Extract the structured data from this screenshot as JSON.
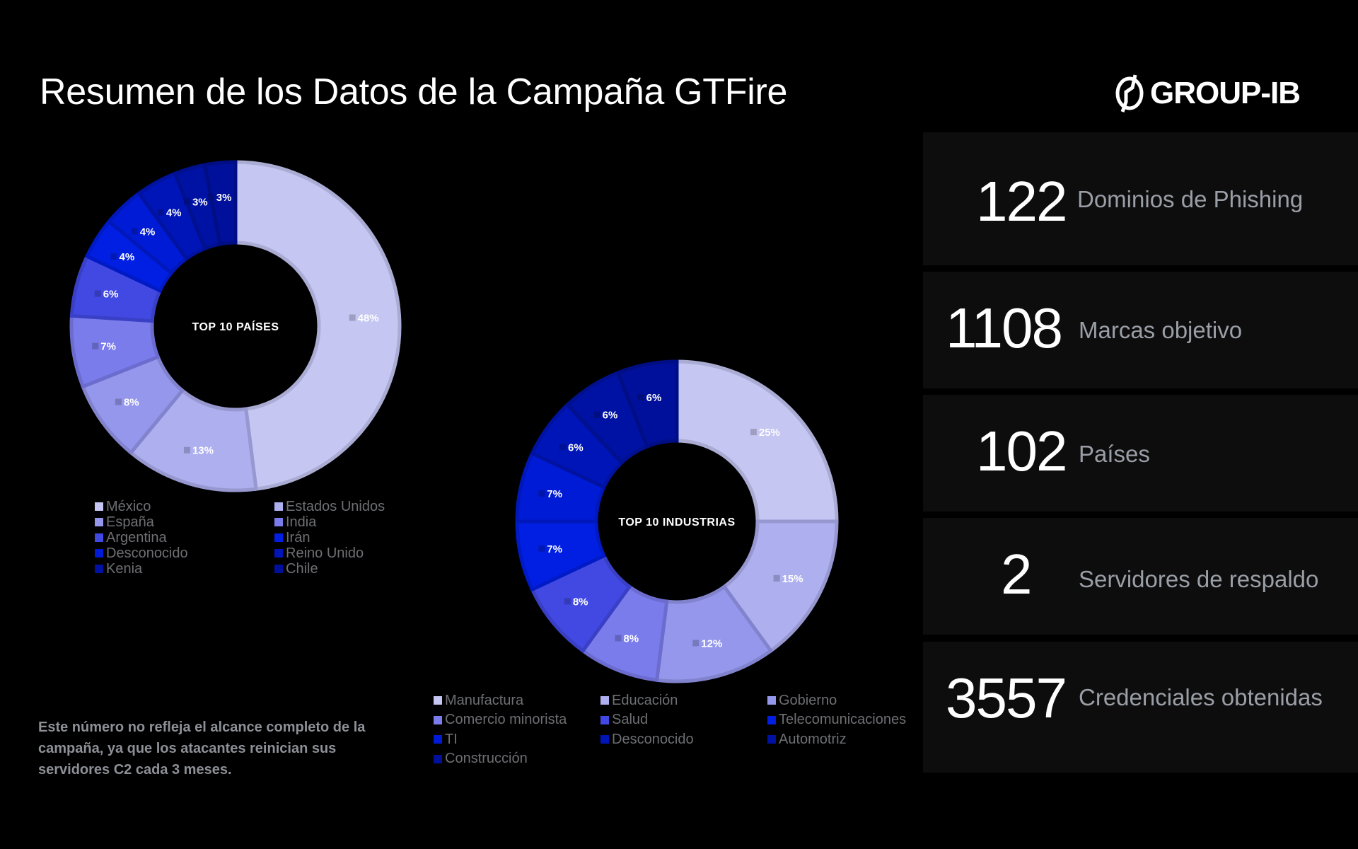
{
  "header": {
    "title": "Resumen de los Datos de la Campaña GTFire",
    "logo_text": "GROUP-IB",
    "logo_icon": "group-ib-logo-icon"
  },
  "countries_chart": {
    "center_label": "TOP 10 PAÍSES"
  },
  "industries_chart": {
    "center_label": "TOP 10 INDUSTRIAS"
  },
  "note": "Este número no refleja el alcance completo de la campaña, ya que los atacantes reinician sus servidores C2 cada 3 meses.",
  "stats": [
    {
      "value": "122",
      "label": "Dominios de Phishing"
    },
    {
      "value": "1108",
      "label": "Marcas objetivo"
    },
    {
      "value": "102",
      "label": "Países"
    },
    {
      "value": "2",
      "label": "Servidores de respaldo"
    },
    {
      "value": "3557",
      "label": "Credenciales obtenidas"
    }
  ],
  "colors": {
    "background": "#000000",
    "card_background": "#0d0d0d",
    "legend_text": "#6e6f73",
    "stat_label": "#9a9ea6",
    "note_text": "#8d9097"
  },
  "chart_data": [
    {
      "type": "pie",
      "variant": "donut",
      "title": "TOP 10 PAÍSES",
      "categories": [
        "México",
        "Estados Unidos",
        "España",
        "India",
        "Argentina",
        "Irán",
        "Desconocido",
        "Reino Unido",
        "Kenia",
        "Chile"
      ],
      "values": [
        48,
        13,
        8,
        7,
        6,
        4,
        4,
        4,
        3,
        3
      ],
      "value_labels": [
        "48%",
        "13%",
        "8%",
        "7%",
        "6%",
        "4%",
        "4%",
        "4%",
        "3%",
        "3%"
      ],
      "colors": [
        "#C5C6F2",
        "#AEAFEF",
        "#9597EC",
        "#7B7CEC",
        "#4249E3",
        "#001FE3",
        "#001BD5",
        "#0015B8",
        "#0012A3",
        "#00109A"
      ],
      "legend_position": "bottom",
      "legend_columns": 2
    },
    {
      "type": "pie",
      "variant": "donut",
      "title": "TOP 10 INDUSTRIAS",
      "categories": [
        "Manufactura",
        "Educación",
        "Gobierno",
        "Comercio minorista",
        "Salud",
        "Telecomunicaciones",
        "TI",
        "Desconocido",
        "Automotriz",
        "Construcción"
      ],
      "values": [
        25,
        15,
        12,
        8,
        8,
        7,
        7,
        6,
        6,
        6
      ],
      "value_labels": [
        "25%",
        "15%",
        "12%",
        "8%",
        "8%",
        "7%",
        "7%",
        "6%",
        "6%",
        "6%"
      ],
      "colors": [
        "#C5C6F2",
        "#AEAFEF",
        "#9597EC",
        "#7B7CEC",
        "#4249E3",
        "#001FE3",
        "#001BD5",
        "#0015B8",
        "#0012A3",
        "#00109A"
      ],
      "legend_position": "bottom",
      "legend_columns": 3
    }
  ]
}
